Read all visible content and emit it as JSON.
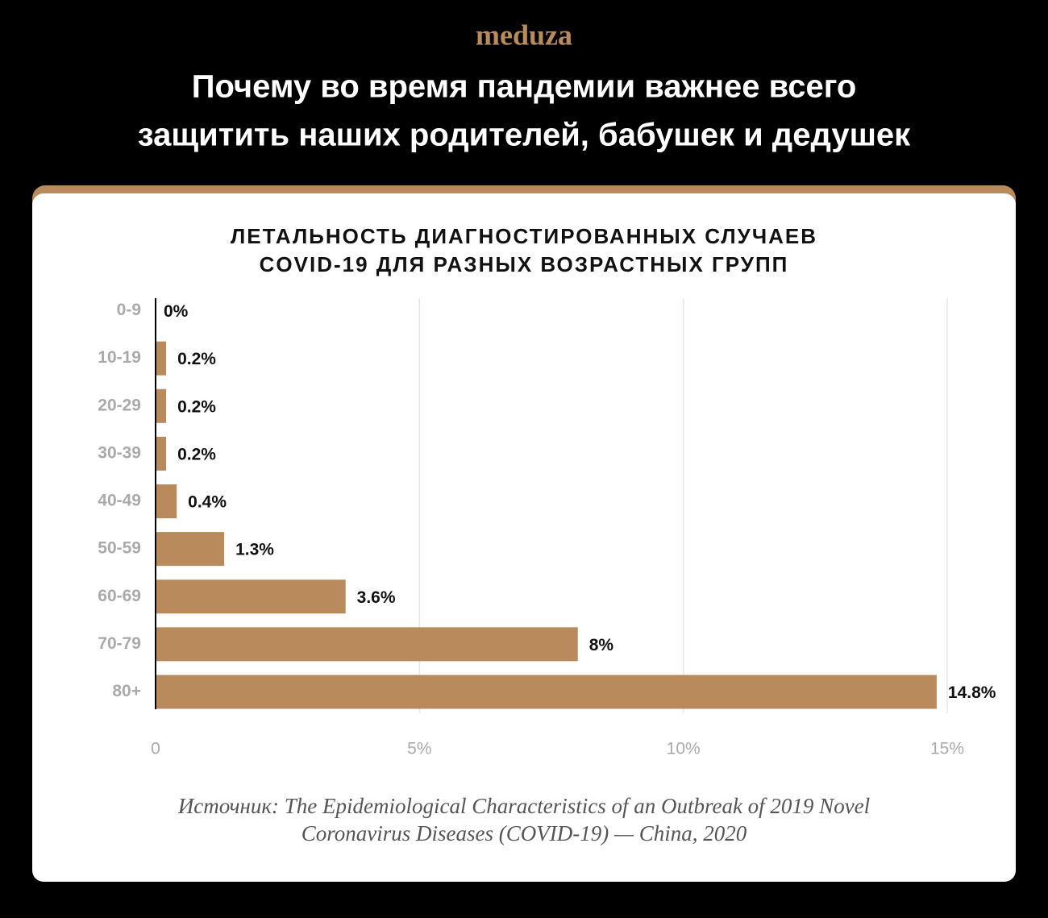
{
  "brand": "meduza",
  "headline": [
    "Почему во время пандемии важнее всего",
    "защитить наших родителей, бабушек и дедушек"
  ],
  "chart_data": {
    "type": "bar",
    "orientation": "horizontal",
    "title": [
      "ЛЕТАЛЬНОСТЬ ДИАГНОСТИРОВАННЫХ СЛУЧАЕВ",
      "COVID-19 ДЛЯ РАЗНЫХ ВОЗРАСТНЫХ ГРУПП"
    ],
    "categories": [
      "0-9",
      "10-19",
      "20-29",
      "30-39",
      "40-49",
      "50-59",
      "60-69",
      "70-79",
      "80+"
    ],
    "values": [
      0,
      0.2,
      0.2,
      0.2,
      0.4,
      1.3,
      3.6,
      8,
      14.8
    ],
    "value_labels": [
      "0%",
      "0.2%",
      "0.2%",
      "0.2%",
      "0.4%",
      "1.3%",
      "3.6%",
      "8%",
      "14.8%"
    ],
    "color": "#b98b5c",
    "xlim": [
      0,
      15
    ],
    "xticks": [
      0,
      {
        "value": 5,
        "label": "5%"
      },
      {
        "value": 10,
        "label": "10%"
      },
      {
        "value": 15,
        "label": "15%"
      }
    ],
    "grid": true,
    "source": [
      "Источник: The Epidemiological Characteristics of an Outbreak of 2019 Novel",
      "Coronavirus Diseases (COVID-19) — China, 2020"
    ]
  }
}
